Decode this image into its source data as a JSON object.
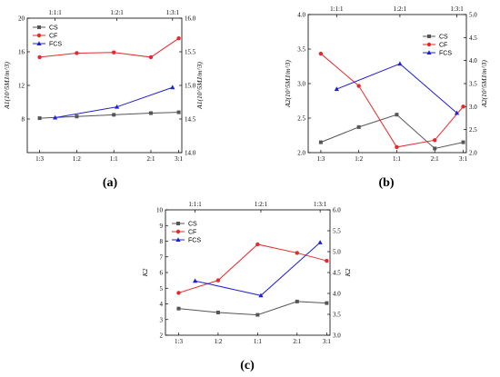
{
  "chart_data": [
    {
      "type": "line",
      "panel_label": "(a)",
      "categories": [
        "1:3",
        "1:2",
        "1:1",
        "2:1",
        "3:1"
      ],
      "top_categories": [
        "1:1:1",
        "1:2:1",
        "1:3:1"
      ],
      "ylabel_left": "A1(10^5MJ/m^3)",
      "ylabel_right": "A1(10^5MJ/m^3)",
      "ylim_left": [
        4,
        20
      ],
      "yticks_left": [
        "8",
        "12",
        "16",
        "20"
      ],
      "ylim_right": [
        14.0,
        16.0
      ],
      "yticks_right": [
        "14.0",
        "14.5",
        "15.0",
        "15.5",
        "16.0"
      ],
      "series": [
        {
          "name": "CS",
          "color": "#555555",
          "marker": "square",
          "axis": "left",
          "x": [
            "1:3",
            "1:2",
            "1:1",
            "2:1",
            "3:1"
          ],
          "values": [
            8.1,
            8.3,
            8.5,
            8.7,
            8.8
          ]
        },
        {
          "name": "CF",
          "color": "#e8282b",
          "marker": "circle",
          "axis": "right",
          "x": [
            "1:3",
            "1:2",
            "1:1",
            "2:1",
            "3:1"
          ],
          "values": [
            15.42,
            15.48,
            15.49,
            15.42,
            15.7
          ]
        },
        {
          "name": "FCS",
          "color": "#1f1fd8",
          "marker": "triangle",
          "axis": "right",
          "x": [
            "1:1:1",
            "1:2:1",
            "1:3:1"
          ],
          "values": [
            14.52,
            14.68,
            14.97
          ]
        }
      ]
    },
    {
      "type": "line",
      "panel_label": "(b)",
      "categories": [
        "1:3",
        "1:2",
        "1:1",
        "2:1",
        "3:1"
      ],
      "top_categories": [
        "1:1:1",
        "1:2:1",
        "1:3:1"
      ],
      "ylabel_left": "A2(10^5MJ/m^3)",
      "ylabel_right": "A2(10^5MJ/m^3)",
      "ylim_left": [
        2.0,
        4.0
      ],
      "yticks_left": [
        "2.0",
        "2.5",
        "3.0",
        "3.5",
        "4.0"
      ],
      "ylim_right": [
        2.0,
        5.0
      ],
      "yticks_right": [
        "2.0",
        "2.5",
        "3.0",
        "3.5",
        "4.0",
        "4.5",
        "5.0"
      ],
      "series": [
        {
          "name": "CS",
          "color": "#555555",
          "marker": "square",
          "axis": "left",
          "x": [
            "1:3",
            "1:2",
            "1:1",
            "2:1",
            "3:1"
          ],
          "values": [
            2.15,
            2.37,
            2.55,
            2.06,
            2.15
          ]
        },
        {
          "name": "CF",
          "color": "#e8282b",
          "marker": "circle",
          "axis": "right",
          "x": [
            "1:3",
            "1:2",
            "1:1",
            "2:1",
            "3:1"
          ],
          "values": [
            4.15,
            3.45,
            2.12,
            2.27,
            3.0
          ]
        },
        {
          "name": "FCS",
          "color": "#1f1fd8",
          "marker": "triangle",
          "axis": "right",
          "x": [
            "1:1:1",
            "1:2:1",
            "1:3:1"
          ],
          "values": [
            3.38,
            3.93,
            2.86
          ]
        }
      ]
    },
    {
      "type": "line",
      "panel_label": "(c)",
      "categories": [
        "1:3",
        "1:2",
        "1:1",
        "2:1",
        "3:1"
      ],
      "top_categories": [
        "1:1:1",
        "1:2:1",
        "1:3:1"
      ],
      "ylabel_left": "K2",
      "ylabel_right": "K2",
      "ylim_left": [
        2,
        10
      ],
      "yticks_left": [
        "2",
        "3",
        "4",
        "5",
        "6",
        "7",
        "8",
        "9",
        "10"
      ],
      "ylim_right": [
        3.0,
        6.0
      ],
      "yticks_right": [
        "3.0",
        "3.5",
        "4.0",
        "4.5",
        "5.0",
        "5.5",
        "6.0"
      ],
      "series": [
        {
          "name": "CS",
          "color": "#555555",
          "marker": "square",
          "axis": "left",
          "x": [
            "1:3",
            "1:2",
            "1:1",
            "2:1",
            "3:1"
          ],
          "values": [
            3.7,
            3.45,
            3.3,
            4.15,
            4.05
          ]
        },
        {
          "name": "CF",
          "color": "#e8282b",
          "marker": "circle",
          "axis": "left",
          "x": [
            "1:3",
            "1:2",
            "1:1",
            "2:1",
            "3:1"
          ],
          "values": [
            4.7,
            5.5,
            7.8,
            7.25,
            6.75
          ]
        },
        {
          "name": "FCS",
          "color": "#1f1fd8",
          "marker": "triangle",
          "axis": "right",
          "x": [
            "1:1:1",
            "1:2:1",
            "1:3:1"
          ],
          "values": [
            4.3,
            3.95,
            5.22
          ]
        }
      ]
    }
  ]
}
